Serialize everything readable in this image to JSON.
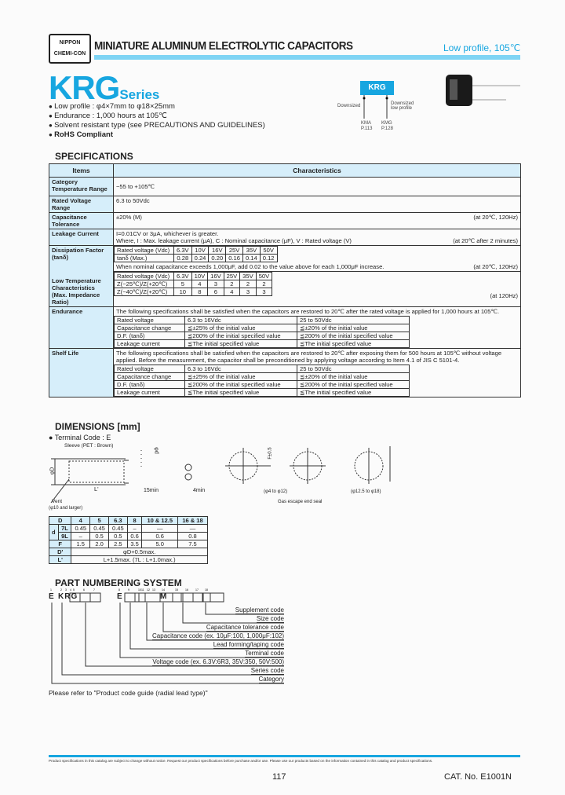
{
  "header": {
    "logo_line1": "NIPPON",
    "logo_line2": "CHEMI-CON",
    "title": "MINIATURE ALUMINUM ELECTROLYTIC CAPACITORS",
    "subtitle": "Low profile, 105℃",
    "accent": "#17a6e0",
    "bar_color": "#7fd4f4"
  },
  "series": {
    "name": "KRG",
    "suffix": "Series"
  },
  "features": [
    "Low profile : φ4×7mm to φ18×25mm",
    "Endurance : 1,000 hours at 105℃",
    "Solvent resistant type (see PRECAUTIONS AND GUIDELINES)",
    "RoHS Compliant"
  ],
  "family": {
    "box": "KRG",
    "left_label": "Downsized",
    "right_label": "Downsized low profile",
    "left_series": "KMA",
    "left_page": "P.113",
    "right_series": "KMG",
    "right_page": "P.128"
  },
  "specifications": {
    "heading": "SPECIFICATIONS",
    "col_items": "Items",
    "col_characteristics": "Characteristics",
    "category_temp": {
      "item": "Category Temperature Range",
      "value": "−55 to +105℃"
    },
    "rated_voltage": {
      "item": "Rated Voltage Range",
      "value": "6.3 to 50Vdc"
    },
    "cap_tolerance": {
      "item": "Capacitance Tolerance",
      "value": "±20% (M)",
      "cond": "(at 20℃, 120Hz)"
    },
    "leakage": {
      "item": "Leakage Current",
      "line1": "I=0.01CV or 3μA, whichever is greater.",
      "line2": "Where, I : Max. leakage current (μA), C : Nominal capacitance (μF), V : Rated voltage (V)",
      "cond": "(at 20℃ after 2 minutes)"
    },
    "dissipation": {
      "item": "Dissipation Factor (tanδ)",
      "row_label": "Rated voltage (Vdc)",
      "voltages": [
        "6.3V",
        "10V",
        "16V",
        "25V",
        "35V",
        "50V"
      ],
      "tan_label": "tanδ (Max.)",
      "tan": [
        "0.28",
        "0.24",
        "0.20",
        "0.16",
        "0.14",
        "0.12"
      ],
      "note": "When nominal capacitance exceeds 1,000μF, add 0.02 to the value above for each 1,000μF increase.",
      "cond": "(at 20℃, 120Hz)"
    },
    "low_temp": {
      "item": "Low Temperature Characteristics (Max. Impedance Ratio)",
      "row_label": "Rated voltage (Vdc)",
      "voltages": [
        "6.3V",
        "10V",
        "16V",
        "25V",
        "35V",
        "50V"
      ],
      "z25_label": "Z(−25℃)/Z(+20℃)",
      "z25": [
        "5",
        "4",
        "3",
        "2",
        "2",
        "2"
      ],
      "z40_label": "Z(−40℃)/Z(+20℃)",
      "z40": [
        "10",
        "8",
        "6",
        "4",
        "3",
        "3"
      ],
      "cond": "(at 120Hz)"
    },
    "endurance": {
      "item": "Endurance",
      "text": "The following specifications shall be satisfied when the capacitors are restored to 20℃ after the rated voltage is applied for 1,000 hours at 105℃.",
      "rows": [
        [
          "Rated voltage",
          "6.3 to 16Vdc",
          "25 to 50Vdc"
        ],
        [
          "Capacitance change",
          "≦±25% of the initial value",
          "≦±20% of the initial value"
        ],
        [
          "D.F. (tanδ)",
          "≦200% of the initial specified value",
          "≦200% of the initial specified value"
        ],
        [
          "Leakage current",
          "≦The initial specified value",
          "≦The initial specified value"
        ]
      ]
    },
    "shelf": {
      "item": "Shelf Life",
      "text": "The following specifications shall be satisfied when the capacitors are restored to 20℃ after exposing them for 500 hours at 105℃ without voltage applied. Before the measurement, the capacitor shall be preconditioned by applying voltage according to Item 4.1 of JIS C 5101-4.",
      "rows": [
        [
          "Rated voltage",
          "6.3 to 16Vdc",
          "25 to 50Vdc"
        ],
        [
          "Capacitance change",
          "≦±25% of the initial value",
          "≦±20% of the initial value"
        ],
        [
          "D.F. (tanδ)",
          "≦200% of the initial specified value",
          "≦200% of the initial specified value"
        ],
        [
          "Leakage current",
          "≦The initial specified value",
          "≦The initial specified value"
        ]
      ]
    }
  },
  "dimensions": {
    "heading": "DIMENSIONS [mm]",
    "terminal": "Terminal Code : E",
    "sleeve": "Sleeve (PET : Brown)",
    "vent": "Vent",
    "vent_note": "(φ10 and larger)",
    "phi_d": "φD",
    "phi_d_small": "φd",
    "l_prime": "L'",
    "min15": "15min",
    "min4": "4min",
    "f_tol": "F±0.5",
    "range1": "(φ4 to φ12)",
    "range2": "(φ12.5 to φ18)",
    "seal": "Gas escape end seal",
    "table": {
      "D_label": "D",
      "d_label": "d",
      "F_label": "F",
      "Dp_label": "D'",
      "Lp_label": "L'",
      "sizes": [
        "4",
        "5",
        "6.3",
        "8",
        "10 & 12.5",
        "16 & 18"
      ],
      "row7L_label": "7L",
      "row7L": [
        "0.45",
        "0.45",
        "0.45",
        "–",
        "—",
        "—"
      ],
      "row9L_label": "9L",
      "row9L": [
        "–",
        "0.5",
        "0.5",
        "0.6",
        "0.6",
        "0.8"
      ],
      "F": [
        "1.5",
        "2.0",
        "2.5",
        "3.5",
        "5.0",
        "7.5"
      ],
      "Dp": "φD+0.5max.",
      "Lp": "L+1.5max. (7L : L+1.0max.)"
    }
  },
  "part_numbering": {
    "heading": "PART NUMBERING SYSTEM",
    "digits": [
      "1",
      "2",
      "3",
      "4",
      "5",
      "6",
      "7",
      "8",
      "9",
      "10",
      "11",
      "12",
      "13",
      "14",
      "15",
      "16",
      "17",
      "18"
    ],
    "code_chars": [
      "E",
      "KRG",
      "E",
      "M"
    ],
    "labels": [
      "Supplement code",
      "Size code",
      "Capacitance tolerance code",
      "Capacitance code (ex. 10μF:100, 1,000μF:102)",
      "Lead forming/taping code",
      "Terminal code",
      "Voltage code (ex. 6.3V:6R3, 35V:350, 50V:500)",
      "Series code",
      "Category"
    ],
    "note": "Please refer to \"Product code guide (radial lead type)\""
  },
  "footer": {
    "disclaimer": "Product specifications in this catalog are subject to change without notice. Request our product specifications before purchase and/or use. Please use our products based on the information contained in this catalog and product specifications.",
    "page": "117",
    "catalog": "CAT. No. E1001N"
  }
}
